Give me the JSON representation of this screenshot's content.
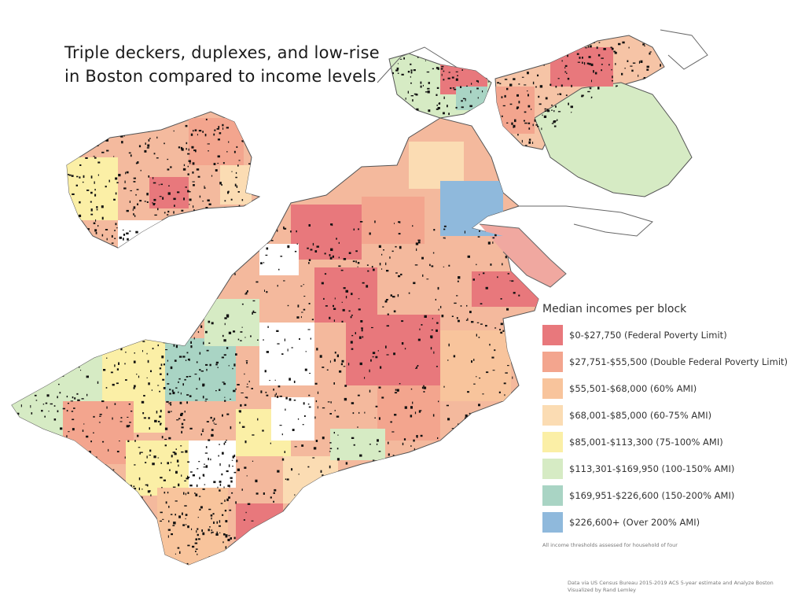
{
  "title": {
    "line1": "Triple deckers, duplexes, and low-rise",
    "line2": "in Boston compared to income levels"
  },
  "legend": {
    "title": "Median incomes per block",
    "items": [
      {
        "label": "$0-$27,750 (Federal Poverty Limit)",
        "color": "#e8787c"
      },
      {
        "label": "$27,751-$55,500 (Double Federal Poverty Limit)",
        "color": "#f3a58e"
      },
      {
        "label": "$55,501-$68,000 (60% AMI)",
        "color": "#f8c49c"
      },
      {
        "label": "$68,001-$85,000 (60-75% AMI)",
        "color": "#fbdcb3"
      },
      {
        "label": "$85,001-$113,300 (75-100% AMI)",
        "color": "#fbefa6"
      },
      {
        "label": "$113,301-$169,950 (100-150% AMI)",
        "color": "#d6ebc4"
      },
      {
        "label": "$169,951-$226,600 (150-200% AMI)",
        "color": "#a9d4c4"
      },
      {
        "label": "$226,600+ (Over 200% AMI)",
        "color": "#8fb9dc"
      }
    ],
    "note": "All income thresholds assessed for household of four"
  },
  "credits": {
    "line1": "Data via US Census Bureau 2015-2019 ACS 5-year estimate and Analyze Boston",
    "line2": "Visualized by Rand Lemley"
  },
  "map": {
    "building_color": "#111111",
    "outline_color": "#555555"
  }
}
